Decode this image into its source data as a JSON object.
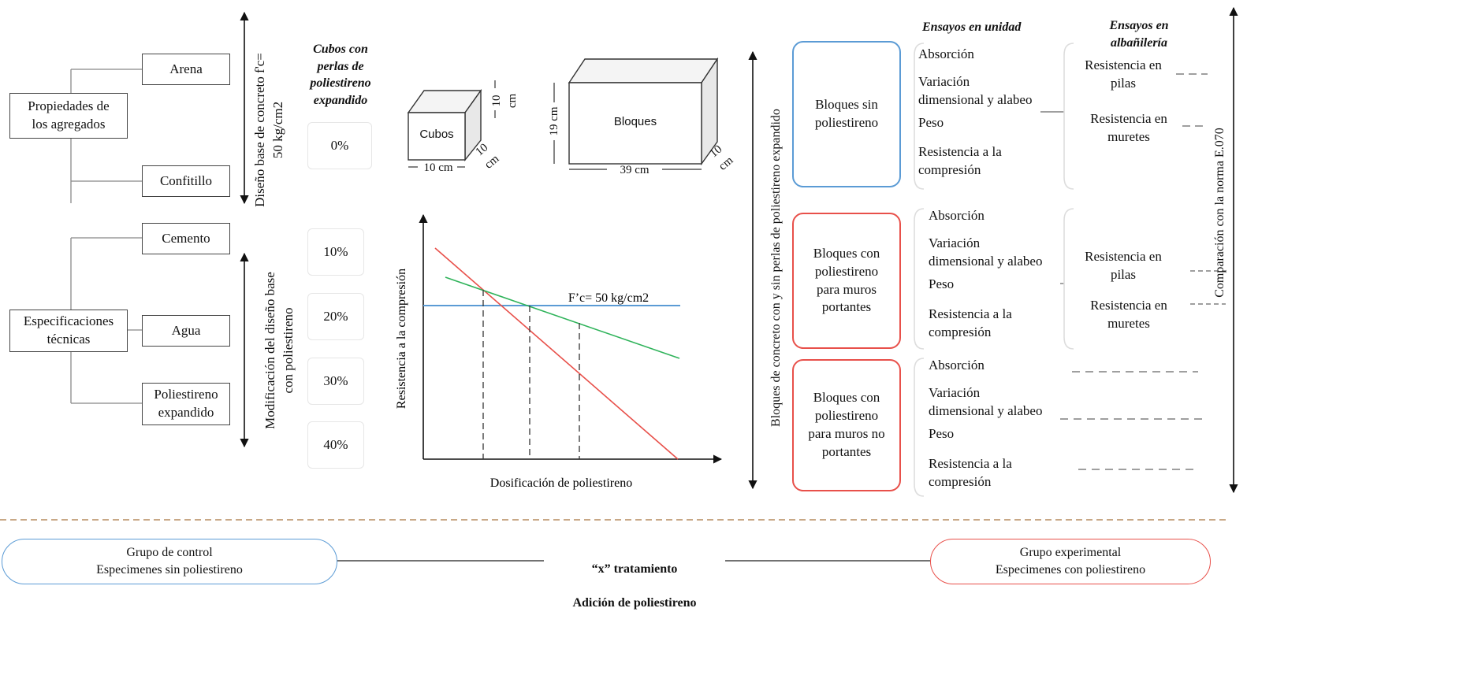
{
  "colors": {
    "blue": "#5b9bd5",
    "red": "#e8504a",
    "green": "#2fb35a",
    "divider": "#c8a886",
    "line": "#444444"
  },
  "materials": {
    "properties_label": "Propiedades de\nlos agregados",
    "specs_label": "Especificaciones\ntécnicas",
    "arena": "Arena",
    "confitillo": "Confitillo",
    "cemento": "Cemento",
    "agua": "Agua",
    "poliestireno": "Poliestireno\nexpandido"
  },
  "axis_labels": {
    "design_base": "Diseño base de concreto f'c=\n50 kg/cm2",
    "modification": "Modificación del diseño base\ncon poliestireno",
    "blocks_axis": "Bloques de concreto con y sin perlas de poliestireno expandido",
    "comparison": "Comparación con la norma E.070"
  },
  "cubes": {
    "title": "Cubos con\nperlas de\npoliestireno\nexpandido",
    "percentages": [
      "0%",
      "10%",
      "20%",
      "30%",
      "40%"
    ]
  },
  "shapes": {
    "cube_label": "Cubos",
    "cube_dim_w": "10 cm",
    "cube_dim_h": "10\ncm",
    "cube_dim_d": "10\ncm",
    "block_label": "Bloques",
    "block_dim_w": "39 cm",
    "block_dim_h": "19 cm",
    "block_dim_d": "10\ncm"
  },
  "chart": {
    "ylabel": "Resistencia a la compresión",
    "xlabel": "Dosificación de poliestireno",
    "ref_label": "F’c= 50 kg/cm2"
  },
  "tests": {
    "unit_header": "Ensayos en unidad",
    "masonry_header": "Ensayos en\nalbañilería",
    "blocks": [
      {
        "label": "Bloques sin\npoliestireno"
      },
      {
        "label": "Bloques con\npoliestireno\npara muros\nportantes"
      },
      {
        "label": "Bloques con\npoliestireno\npara muros no\nportantes"
      }
    ],
    "absorcion": "Absorción",
    "variacion": "Variación\ndimensional y alabeo",
    "peso": "Peso",
    "resistencia": "Resistencia a la\ncompresión",
    "pilas": "Resistencia en\npilas",
    "muretes": "Resistencia en\nmuretes"
  },
  "bottom": {
    "control": "Grupo de control\nEspecimenes sin poliestireno",
    "treatment_line1": "“x” tratamiento",
    "treatment_line2": "Adición de poliestireno",
    "experimental": "Grupo experimental\nEspecimenes con poliestireno"
  }
}
